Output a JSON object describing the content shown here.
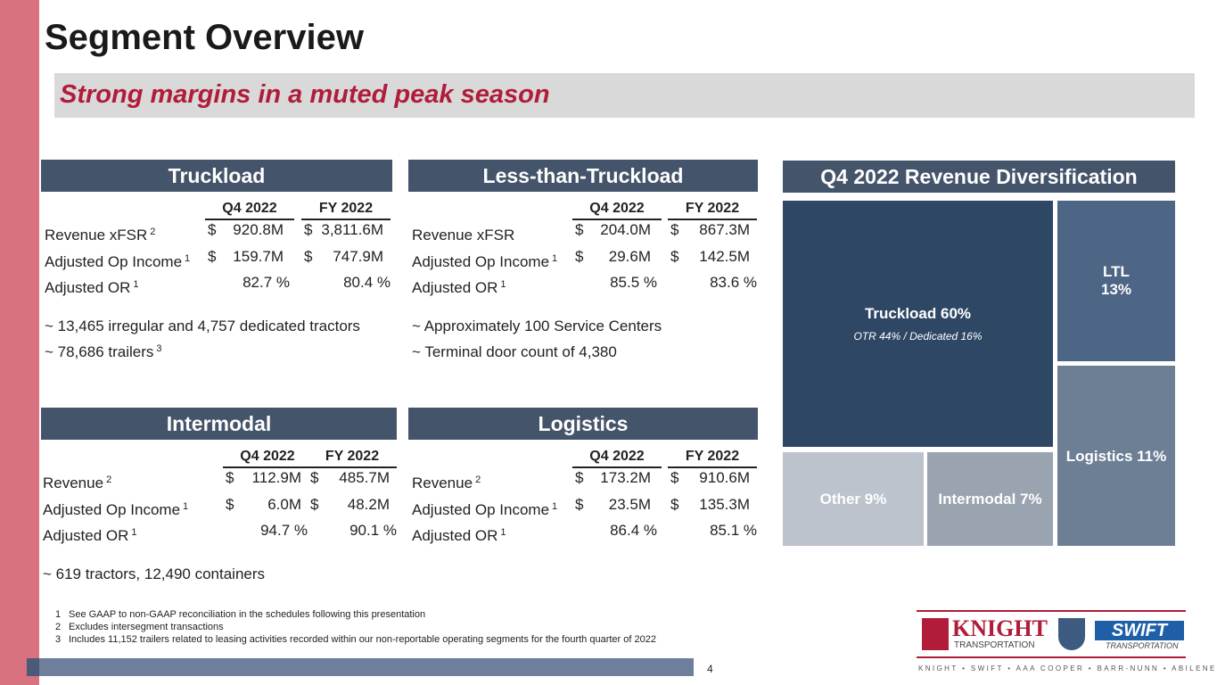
{
  "title": "Segment Overview",
  "subtitle": "Strong margins in a muted peak season",
  "segments": [
    {
      "name": "Truckload",
      "columns": [
        "Q4 2022",
        "FY 2022"
      ],
      "rows": [
        {
          "label": "Revenue xFSR",
          "note": "2",
          "cells": [
            {
              "currency": "$",
              "amount": "920.8M"
            },
            {
              "currency": "$",
              "amount": "3,811.6M"
            }
          ]
        },
        {
          "label": "Adjusted Op Income",
          "note": "1",
          "cells": [
            {
              "currency": "$",
              "amount": "159.7M"
            },
            {
              "currency": "$",
              "amount": "747.9M"
            }
          ]
        },
        {
          "label": "Adjusted OR",
          "note": "1",
          "cells": [
            {
              "amount": "82.7 %"
            },
            {
              "amount": "80.4 %"
            }
          ]
        }
      ],
      "bullets": [
        {
          "text": "~ 13,465 irregular and 4,757 dedicated tractors"
        },
        {
          "text": "~ 78,686 trailers",
          "note": "3"
        }
      ]
    },
    {
      "name": "Less-than-Truckload",
      "columns": [
        "Q4 2022",
        "FY 2022"
      ],
      "rows": [
        {
          "label": "Revenue xFSR",
          "cells": [
            {
              "currency": "$",
              "amount": "204.0M"
            },
            {
              "currency": "$",
              "amount": "867.3M"
            }
          ]
        },
        {
          "label": "Adjusted Op Income",
          "note": "1",
          "cells": [
            {
              "currency": "$",
              "amount": "29.6M"
            },
            {
              "currency": "$",
              "amount": "142.5M"
            }
          ]
        },
        {
          "label": "Adjusted OR",
          "note": "1",
          "cells": [
            {
              "amount": "85.5 %"
            },
            {
              "amount": "83.6 %"
            }
          ]
        }
      ],
      "bullets": [
        {
          "text": "~ Approximately 100 Service Centers"
        },
        {
          "text": "~ Terminal door count of 4,380"
        }
      ]
    },
    {
      "name": "Intermodal",
      "columns": [
        "Q4 2022",
        "FY 2022"
      ],
      "rows": [
        {
          "label": "Revenue",
          "note": "2",
          "cells": [
            {
              "currency": "$",
              "amount": "112.9M"
            },
            {
              "currency": "$",
              "amount": "485.7M"
            }
          ]
        },
        {
          "label": "Adjusted Op Income",
          "note": "1",
          "cells": [
            {
              "currency": "$",
              "amount": "6.0M"
            },
            {
              "currency": "$",
              "amount": "48.2M"
            }
          ]
        },
        {
          "label": "Adjusted OR",
          "note": "1",
          "cells": [
            {
              "amount": "94.7 %"
            },
            {
              "amount": "90.1 %"
            }
          ]
        }
      ],
      "bullets": [
        {
          "text": "~  619 tractors, 12,490 containers"
        }
      ]
    },
    {
      "name": "Logistics",
      "columns": [
        "Q4 2022",
        "FY 2022"
      ],
      "rows": [
        {
          "label": "Revenue",
          "note": "2",
          "cells": [
            {
              "currency": "$",
              "amount": "173.2M"
            },
            {
              "currency": "$",
              "amount": "910.6M"
            }
          ]
        },
        {
          "label": "Adjusted Op Income",
          "note": "1",
          "cells": [
            {
              "currency": "$",
              "amount": "23.5M"
            },
            {
              "currency": "$",
              "amount": "135.3M"
            }
          ]
        },
        {
          "label": "Adjusted OR",
          "note": "1",
          "cells": [
            {
              "amount": "86.4 %"
            },
            {
              "amount": "85.1 %"
            }
          ]
        }
      ],
      "bullets": []
    }
  ],
  "diversification": {
    "title": "Q4 2022 Revenue Diversification",
    "tiles": [
      {
        "label": "Truckload 60%",
        "sublabel": "OTR 44% / Dedicated 16%"
      },
      {
        "label": "LTL",
        "sublabel": "13%"
      },
      {
        "label": "Logistics 11%"
      },
      {
        "label": "Other 9%"
      },
      {
        "label": "Intermodal 7%"
      }
    ]
  },
  "footnotes": [
    {
      "number": "1",
      "text": "See GAAP to non-GAAP reconciliation in the schedules following this presentation"
    },
    {
      "number": "2",
      "text": "Excludes intersegment transactions"
    },
    {
      "number": "3",
      "text": "Includes 11,152 trailers related to leasing activities recorded within our non-reportable operating segments for the fourth quarter of 2022"
    }
  ],
  "page_number": "4",
  "logo": {
    "knight": "KNIGHT",
    "knight_sub": "TRANSPORTATION",
    "swift": "SWIFT",
    "swift_sub": "TRANSPORTATION",
    "tagline": "KNIGHT • SWIFT • AAA COOPER • BARR-NUNN • ABILENE • MME"
  }
}
